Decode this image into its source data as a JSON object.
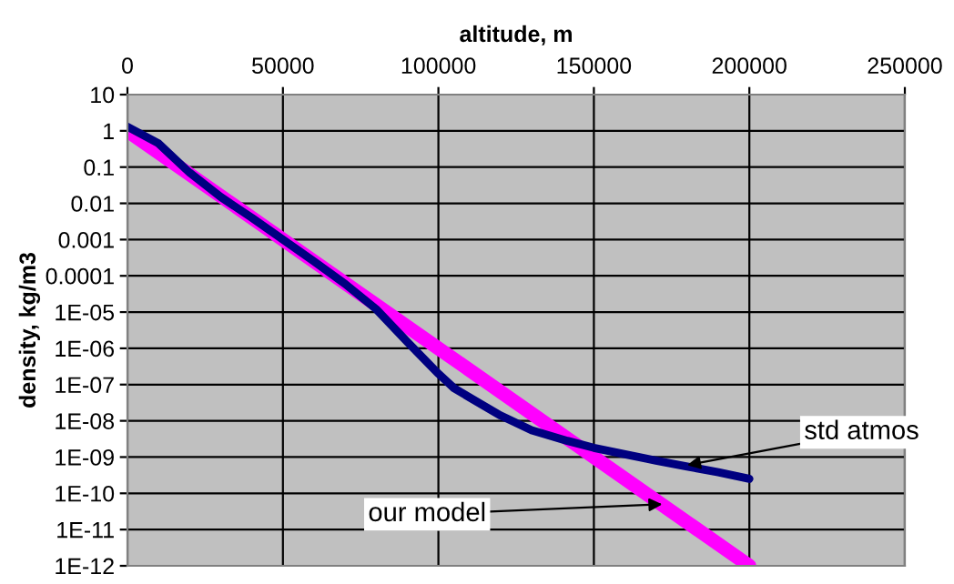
{
  "chart_data": {
    "type": "line",
    "xlabel": "altitude, m",
    "ylabel": "density, kg/m3",
    "log": "y",
    "grid": true,
    "marker": "none",
    "line_style": "solid",
    "xlim": [
      0,
      250000
    ],
    "xticks": [
      0,
      50000,
      100000,
      150000,
      200000,
      250000
    ],
    "ylim": [
      1e-12,
      10
    ],
    "yticks": [
      10,
      1,
      0.1,
      0.01,
      0.001,
      0.0001,
      {
        "value": 1e-05,
        "label": "1E-05"
      },
      {
        "value": 1e-06,
        "label": "1E-06"
      },
      {
        "value": 1e-07,
        "label": "1E-07"
      },
      {
        "value": 1e-08,
        "label": "1E-08"
      },
      {
        "value": 1e-09,
        "label": "1E-09"
      },
      {
        "value": 1e-10,
        "label": "1E-10"
      },
      {
        "value": 1e-11,
        "label": "1E-11"
      },
      {
        "value": 1e-12,
        "label": "1E-12"
      }
    ],
    "series": [
      {
        "color": "#ff00ff",
        "x": [
          0,
          50000,
          100000,
          150000,
          200000
        ],
        "values": [
          1,
          0.001,
          1e-06,
          1e-09,
          1e-12
        ]
      },
      {
        "color": "#000080",
        "x": [
          0,
          10000,
          20000,
          30000,
          40000,
          50000,
          60000,
          70000,
          80000,
          90000,
          100000,
          105000,
          112000,
          120000,
          130000,
          141500,
          150000,
          160000,
          170000,
          180000,
          190000,
          200000
        ],
        "values": [
          1.3,
          0.45,
          0.07,
          0.015,
          0.004,
          0.001,
          0.00025,
          6e-05,
          1.2e-05,
          1.5e-06,
          2e-07,
          8e-08,
          3.5e-08,
          1.4e-08,
          5.5e-09,
          2.8e-09,
          1.8e-09,
          1.2e-09,
          8e-10,
          5.5e-10,
          3.8e-10,
          2.5e-10
        ]
      }
    ],
    "annotations": [
      {
        "text": "std atmos",
        "x": 180000,
        "y": 6e-10
      },
      {
        "text": "our model",
        "x": 172000,
        "y": 5e-11
      }
    ]
  }
}
